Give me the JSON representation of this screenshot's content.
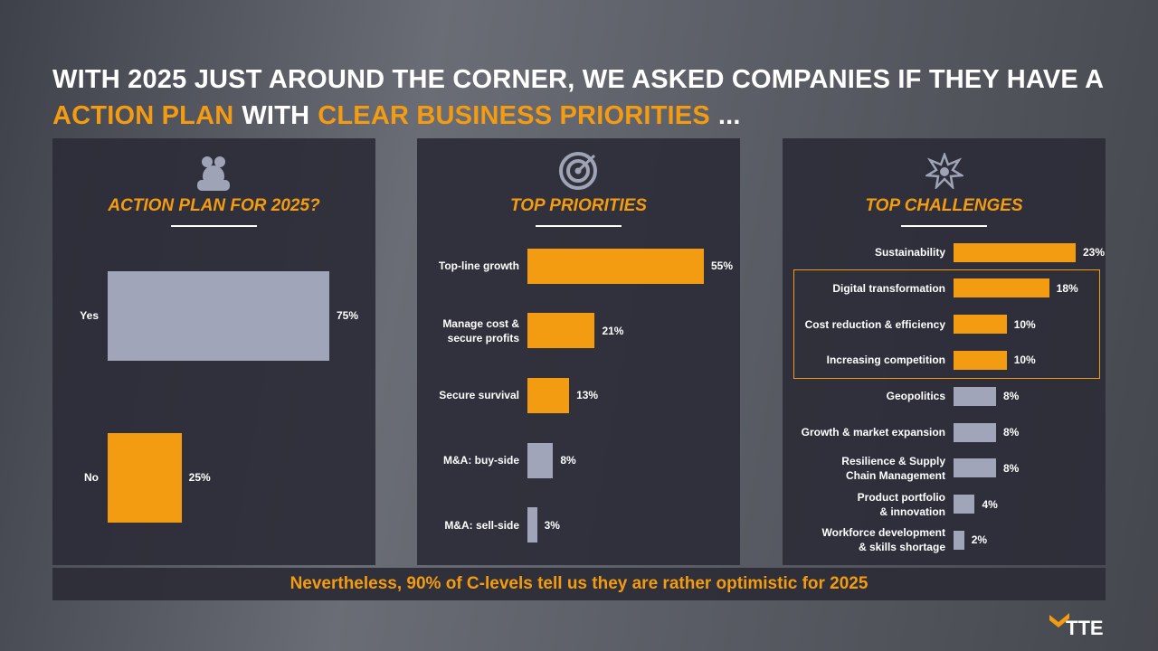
{
  "headline": {
    "line1": "WITH 2025 JUST AROUND THE CORNER, WE ASKED COMPANIES IF THEY HAVE A",
    "line2": [
      {
        "text": "ACTION PLAN",
        "color": "#f39c12"
      },
      {
        "text": "WITH",
        "color": "#ffffff"
      },
      {
        "text": "CLEAR BUSINESS PRIORITIES",
        "color": "#f39c12"
      },
      {
        "text": "...",
        "color": "#ffffff"
      }
    ]
  },
  "chart_data": [
    {
      "type": "bar",
      "orientation": "horizontal",
      "title": "ACTION PLAN FOR 2025?",
      "categories": [
        "Yes",
        "No"
      ],
      "values": [
        75,
        25
      ],
      "value_labels": [
        "75%",
        "25%"
      ],
      "colors": [
        "#a0a5ba",
        "#f39c12"
      ]
    },
    {
      "type": "bar",
      "orientation": "horizontal",
      "title": "TOP PRIORITIES",
      "categories": [
        "Top-line growth",
        "Manage cost &\nsecure profits",
        "Secure survival",
        "M&A: buy-side",
        "M&A: sell-side"
      ],
      "values": [
        55,
        21,
        13,
        8,
        3
      ],
      "value_labels": [
        "55%",
        "21%",
        "13%",
        "8%",
        "3%"
      ],
      "colors": [
        "#f39c12",
        "#f39c12",
        "#f39c12",
        "#a0a5ba",
        "#a0a5ba"
      ]
    },
    {
      "type": "bar",
      "orientation": "horizontal",
      "title": "TOP CHALLENGES",
      "categories": [
        "Sustainability",
        "Digital transformation",
        "Cost reduction & efficiency",
        "Increasing competition",
        "Geopolitics",
        "Growth & market expansion",
        "Resilience & Supply\nChain Management",
        "Product portfolio\n& innovation",
        "Workforce development\n& skills shortage"
      ],
      "values": [
        23,
        18,
        10,
        10,
        8,
        8,
        8,
        4,
        2
      ],
      "value_labels": [
        "23%",
        "18%",
        "10%",
        "10%",
        "8%",
        "8%",
        "8%",
        "4%",
        "2%"
      ],
      "colors": [
        "#f39c12",
        "#f39c12",
        "#f39c12",
        "#f39c12",
        "#a0a5ba",
        "#a0a5ba",
        "#a0a5ba",
        "#a0a5ba",
        "#a0a5ba"
      ]
    }
  ],
  "footer": "Nevertheless, 90% of C-levels tell us they are rather optimistic for 2025",
  "logo": "TTE"
}
